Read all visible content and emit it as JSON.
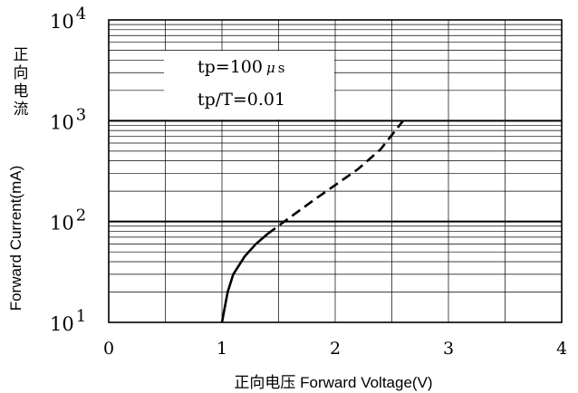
{
  "chart_data": {
    "type": "line",
    "xlabel": "正向电压 Forward Voltage(V)",
    "ylabel": "正向电流 Forward Current(mA)",
    "xlim": [
      0,
      4
    ],
    "ylim": [
      10,
      10000
    ],
    "yscale": "log",
    "x_ticks": [
      {
        "value": 0,
        "label": "0"
      },
      {
        "value": 1,
        "label": "1"
      },
      {
        "value": 2,
        "label": "2"
      },
      {
        "value": 3,
        "label": "3"
      },
      {
        "value": 4,
        "label": "4"
      }
    ],
    "y_ticks": [
      {
        "value": 10,
        "base": "10",
        "exp": "1"
      },
      {
        "value": 100,
        "base": "10",
        "exp": "2"
      },
      {
        "value": 1000,
        "base": "10",
        "exp": "3"
      },
      {
        "value": 10000,
        "base": "10",
        "exp": "4"
      }
    ],
    "grid": true,
    "annotations": {
      "line1": "tp=100",
      "mu": "μ",
      "s": "s",
      "line2": "tp/T=0.01"
    },
    "series": [
      {
        "style": "solid",
        "color": "#000000",
        "points": [
          [
            1.0,
            10
          ],
          [
            1.05,
            20
          ],
          [
            1.1,
            30
          ],
          [
            1.2,
            45
          ],
          [
            1.3,
            60
          ],
          [
            1.4,
            75
          ]
        ]
      },
      {
        "style": "dashed",
        "color": "#000000",
        "points": [
          [
            1.4,
            75
          ],
          [
            1.6,
            110
          ],
          [
            1.8,
            160
          ],
          [
            2.0,
            230
          ],
          [
            2.2,
            330
          ],
          [
            2.4,
            520
          ],
          [
            2.6,
            1000
          ]
        ]
      }
    ]
  }
}
